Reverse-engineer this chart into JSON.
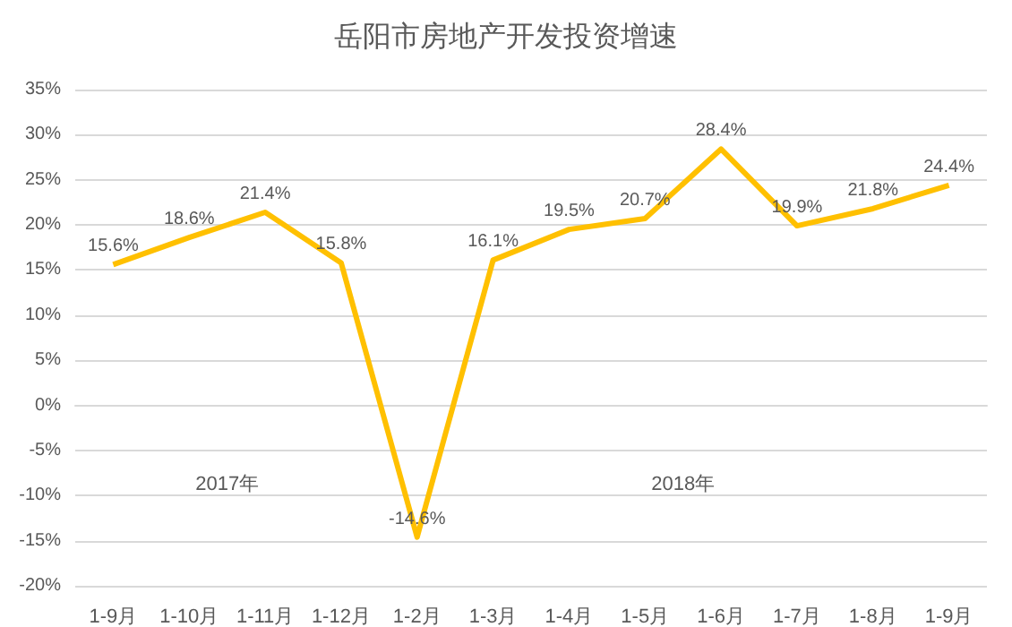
{
  "chart_data": {
    "type": "line",
    "title": "岳阳市房地产开发投资增速",
    "categories": [
      "1-9月",
      "1-10月",
      "1-11月",
      "1-12月",
      "1-2月",
      "1-3月",
      "1-4月",
      "1-5月",
      "1-6月",
      "1-7月",
      "1-8月",
      "1-9月"
    ],
    "series": [
      {
        "color": "#ffc000",
        "values": [
          15.6,
          18.6,
          21.4,
          15.8,
          -14.6,
          16.1,
          19.5,
          20.7,
          28.4,
          19.9,
          21.8,
          24.4
        ],
        "value_labels": [
          "15.6%",
          "18.6%",
          "21.4%",
          "15.8%",
          "-14.6%",
          "16.1%",
          "19.5%",
          "20.7%",
          "28.4%",
          "19.9%",
          "21.8%",
          "24.4%"
        ]
      }
    ],
    "annotations": [
      "2017年",
      "2018年"
    ],
    "ylim": [
      -20,
      35
    ],
    "yticks": [
      {
        "value": -20,
        "label": "-20%"
      },
      {
        "value": -15,
        "label": "-15%"
      },
      {
        "value": -10,
        "label": "-10%"
      },
      {
        "value": -5,
        "label": "-5%"
      },
      {
        "value": 0,
        "label": "0%"
      },
      {
        "value": 5,
        "label": "5%"
      },
      {
        "value": 10,
        "label": "10%"
      },
      {
        "value": 15,
        "label": "15%"
      },
      {
        "value": 20,
        "label": "20%"
      },
      {
        "value": 25,
        "label": "25%"
      },
      {
        "value": 30,
        "label": "30%"
      },
      {
        "value": 35,
        "label": "35%"
      }
    ],
    "grid": "y",
    "marker": "none",
    "line_style": "solid"
  }
}
